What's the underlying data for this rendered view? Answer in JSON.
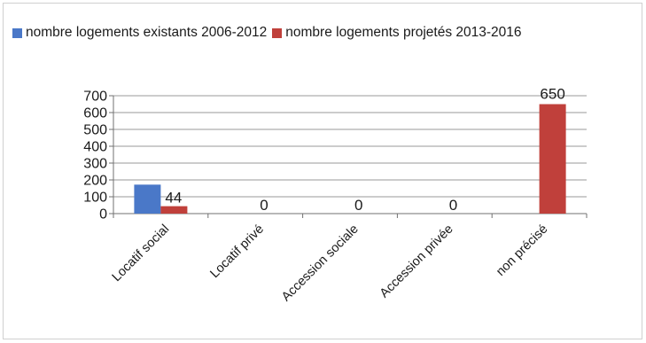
{
  "chart_data": {
    "type": "bar",
    "categories": [
      "Locatif social",
      "Locatif privé",
      "Accession sociale",
      "Accession privée",
      "non précisé"
    ],
    "series": [
      {
        "name": "nombre logements existants 2006-2012",
        "color": "#4a78c8",
        "values": [
          172,
          0,
          0,
          0,
          0
        ],
        "labels": [
          "",
          "",
          "",
          "",
          ""
        ]
      },
      {
        "name": "nombre logements projetés 2013-2016",
        "color": "#c0403b",
        "values": [
          44,
          0,
          0,
          0,
          650
        ],
        "labels": [
          "44",
          "0",
          "0",
          "0",
          "650"
        ]
      }
    ],
    "ylim": [
      0,
      700
    ],
    "yticks": [
      0,
      100,
      200,
      300,
      400,
      500,
      600,
      700
    ],
    "grid": true,
    "legend_position": "top-left"
  }
}
